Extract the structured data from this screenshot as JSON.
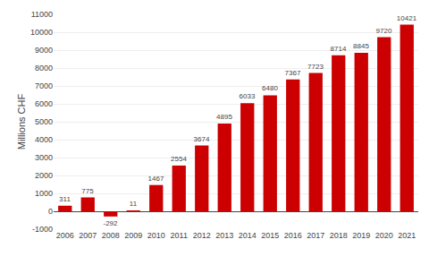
{
  "chart_data": {
    "type": "bar",
    "categories": [
      "2006",
      "2007",
      "2008",
      "2009",
      "2010",
      "2011",
      "2012",
      "2013",
      "2014",
      "2015",
      "2016",
      "2017",
      "2018",
      "2019",
      "2020",
      "2021"
    ],
    "values": [
      311,
      775,
      -292,
      11,
      1467,
      2554,
      3674,
      4895,
      6033,
      6480,
      7367,
      7723,
      8714,
      8845,
      9720,
      10421
    ],
    "color": "#cc0000",
    "ylabel": "Millions CHF",
    "ylim": [
      -1000,
      11000
    ],
    "yticks": [
      -1000,
      0,
      1000,
      2000,
      3000,
      4000,
      5000,
      6000,
      7000,
      8000,
      9000,
      10000,
      11000
    ],
    "grid": true,
    "data_labels": true
  }
}
